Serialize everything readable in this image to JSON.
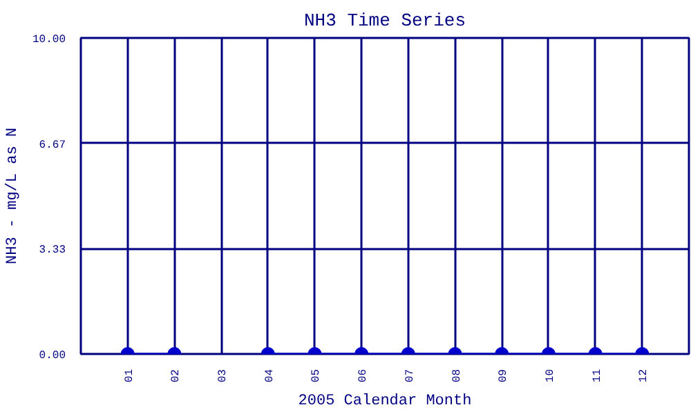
{
  "chart_data": {
    "type": "line",
    "title": "NH3 Time Series",
    "xlabel": "2005 Calendar Month",
    "ylabel": "NH3 - mg/L as N",
    "categories": [
      "01",
      "02",
      "03",
      "04",
      "05",
      "06",
      "07",
      "08",
      "09",
      "10",
      "11",
      "12"
    ],
    "series": [
      {
        "color": "#0000cc",
        "values": [
          0,
          0,
          null,
          0,
          0,
          0,
          0,
          0,
          0,
          0,
          0,
          0
        ]
      }
    ],
    "ylim": [
      0,
      10
    ],
    "yticks": [
      {
        "value": 0,
        "label": "0.00"
      },
      {
        "value": 3.33,
        "label": "3.33"
      },
      {
        "value": 6.67,
        "label": "6.67"
      },
      {
        "value": 10,
        "label": "10.00"
      }
    ],
    "grid": true,
    "marker": "circle",
    "line_style": "solid"
  }
}
